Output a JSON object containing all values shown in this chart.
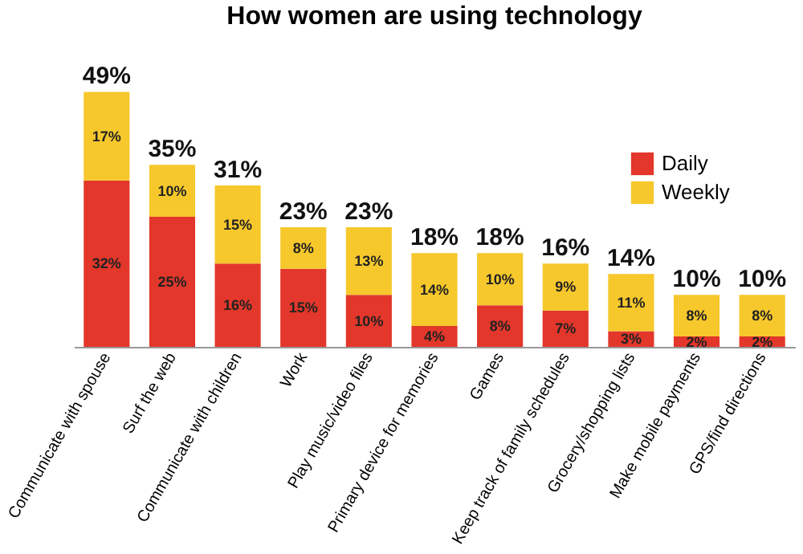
{
  "chart_data": {
    "type": "bar",
    "title": "How women are using technology",
    "stacked": true,
    "legend": "top right",
    "categories": [
      "Communicate with spouse",
      "Surf the web",
      "Communicate with children",
      "Work",
      "Play music/video files",
      "Primary device for memories",
      "Games",
      "Keep track of family schedules",
      "Grocery/shopping lists",
      "Make mobile payments",
      "GPS/find directions"
    ],
    "series": [
      {
        "name": "Daily",
        "color": "#e2372a",
        "values": [
          32,
          25,
          16,
          15,
          10,
          4,
          8,
          7,
          3,
          2,
          2
        ],
        "value_labels": [
          "32%",
          "25%",
          "16%",
          "15%",
          "10%",
          "4%",
          "8%",
          "7%",
          "3%",
          "2%",
          "2%"
        ]
      },
      {
        "name": "Weekly",
        "color": "#f6c82c",
        "values": [
          17,
          10,
          15,
          8,
          13,
          14,
          10,
          9,
          11,
          8,
          8
        ],
        "value_labels": [
          "17%",
          "10%",
          "15%",
          "8%",
          "13%",
          "14%",
          "10%",
          "9%",
          "11%",
          "8%",
          "8%"
        ]
      }
    ],
    "totals": [
      "49%",
      "35%",
      "31%",
      "23%",
      "23%",
      "18%",
      "18%",
      "16%",
      "14%",
      "10%",
      "10%"
    ]
  }
}
